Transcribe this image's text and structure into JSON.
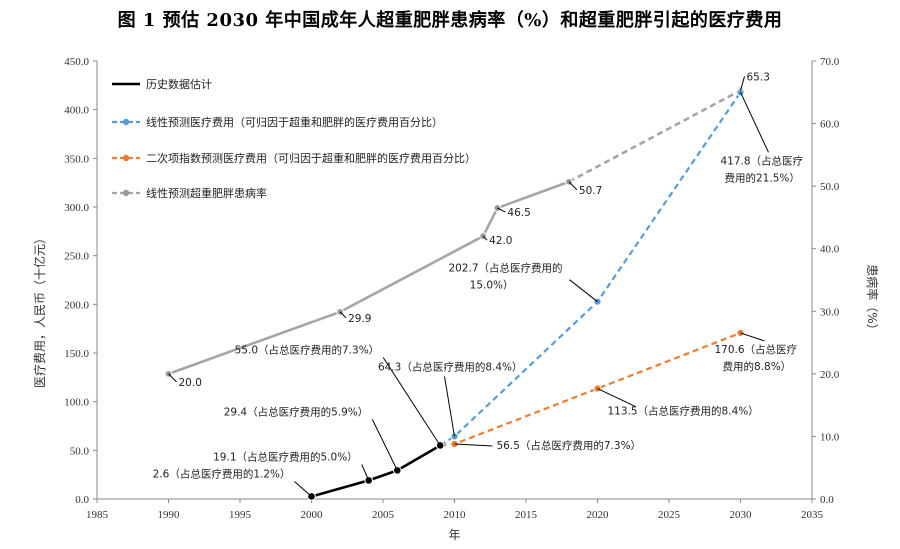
{
  "title": "图 1  预估 2030 年中国成年人超重肥胖患病率（%）和超重肥胖引起的医疗费用",
  "chart_data": {
    "type": "line",
    "xlabel": "年",
    "ylabel_left": "医疗费用，人民币（十亿元）",
    "ylabel_right": "患病率（%）",
    "xlim": [
      1985,
      2035
    ],
    "x_ticks": [
      "1985",
      "1990",
      "1995",
      "2000",
      "2005",
      "2010",
      "2015",
      "2020",
      "2025",
      "2030",
      "2035"
    ],
    "ylim_left": [
      0,
      450
    ],
    "y_left_ticks": [
      "0.0",
      "50.0",
      "100.0",
      "150.0",
      "200.0",
      "250.0",
      "300.0",
      "350.0",
      "400.0",
      "450.0"
    ],
    "ylim_right": [
      0,
      70
    ],
    "y_right_ticks": [
      "0.0",
      "10.0",
      "20.0",
      "30.0",
      "40.0",
      "50.0",
      "60.0",
      "70.0"
    ],
    "grid": false,
    "legend_position": "top-left",
    "series": [
      {
        "name": "历史数据估计",
        "axis": "left",
        "color": "#000000",
        "style": "solid",
        "points": [
          [
            2000,
            2.6
          ],
          [
            2004,
            19.1
          ],
          [
            2006,
            29.4
          ],
          [
            2009,
            55.0
          ]
        ],
        "labels": [
          "2.6（占总医疗费用的1.2%）",
          "19.1（占总医疗费用的5.0%）",
          "29.4（占总医疗费用的5.9%）",
          "55.0（占总医疗费用的7.3%）"
        ]
      },
      {
        "name": "线性预测医疗费用（可归因于超重和肥胖的医疗费用百分比）",
        "axis": "left",
        "color": "#5B9BD5",
        "style": "dashed",
        "points": [
          [
            2009,
            55.0
          ],
          [
            2010,
            64.3
          ],
          [
            2020,
            202.7
          ],
          [
            2030,
            417.8
          ]
        ],
        "labels": [
          "",
          "64.3（占总医疗费用的8.4%）",
          "202.7（占总医疗费用的15.0%）",
          "417.8（占总医疗费用的21.5%）"
        ]
      },
      {
        "name": "二次项指数预测医疗费用（可归因于超重和肥胖的医疗费用百分比）",
        "axis": "left",
        "color": "#ED7D31",
        "style": "dashed",
        "points": [
          [
            2009,
            55.0
          ],
          [
            2010,
            56.5
          ],
          [
            2020,
            113.5
          ],
          [
            2030,
            170.6
          ]
        ],
        "labels": [
          "",
          "56.5（占总医疗费用的7.3%）",
          "113.5（占总医疗费用的8.4%）",
          "170.6（占总医疗费用的8.8%）"
        ]
      },
      {
        "name": "线性预测超重肥胖患病率",
        "axis": "right",
        "color": "#A5A5A5",
        "points": [
          [
            1990,
            20.0
          ],
          [
            2002,
            29.9
          ],
          [
            2012,
            42.0
          ],
          [
            2013,
            46.5
          ],
          [
            2018,
            50.7
          ],
          [
            2030,
            65.3
          ]
        ],
        "solid_until_index": 4,
        "labels": [
          "20.0",
          "29.9",
          "42.0",
          "46.5",
          "50.7",
          "65.3"
        ]
      }
    ]
  }
}
